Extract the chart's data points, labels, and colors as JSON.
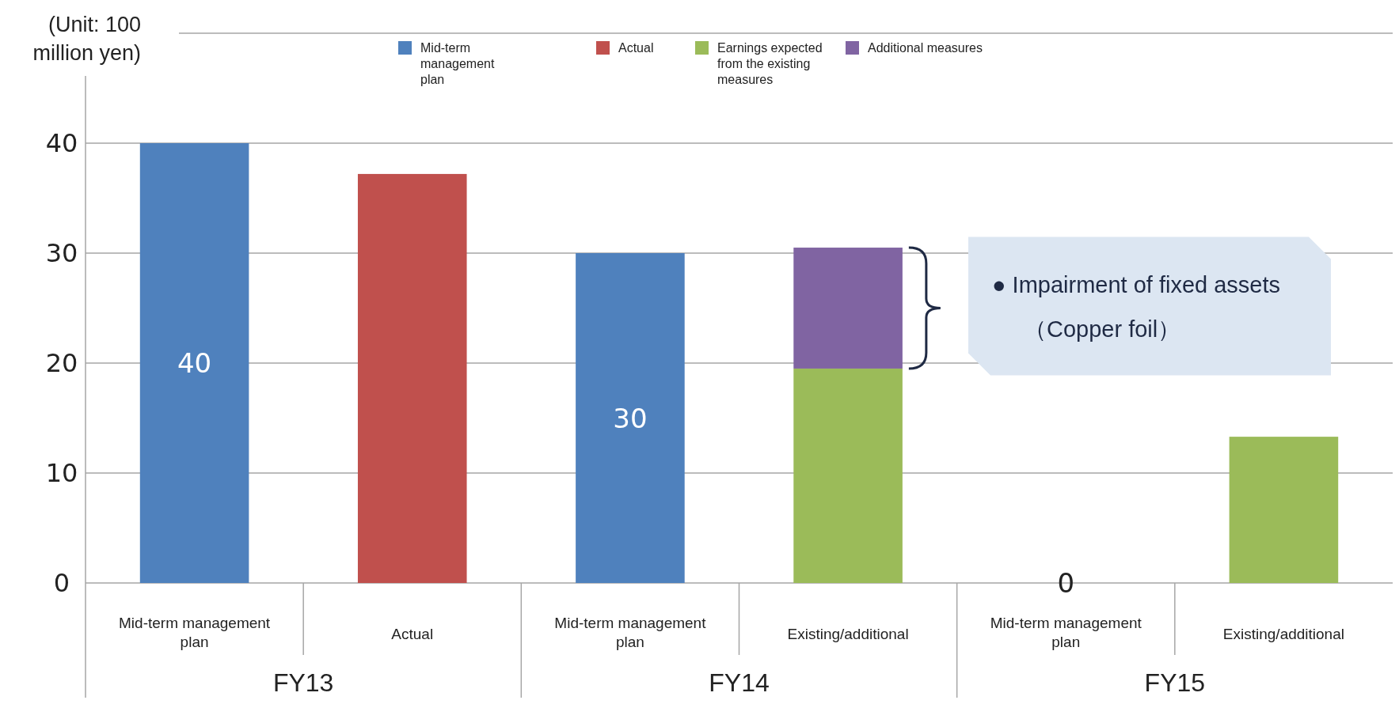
{
  "chart_data": {
    "type": "bar",
    "stacked": true,
    "ylabel": "(Unit: 100 million yen)",
    "categories": [
      "Mid-term management plan",
      "Actual",
      "Mid-term management plan",
      "Existing/additional",
      "Mid-term management plan",
      "Existing/additional"
    ],
    "series": [
      {
        "name": "Mid-term management plan",
        "color": "#4f81bd",
        "values": [
          40,
          null,
          30,
          null,
          0,
          null
        ],
        "value_labels": [
          "40",
          null,
          "30",
          null,
          "0",
          null
        ]
      },
      {
        "name": "Actual",
        "color": "#c0504d",
        "values": [
          null,
          37.2,
          null,
          null,
          null,
          null
        ]
      },
      {
        "name": "Earnings expected from the existing measures",
        "color": "#9bbb59",
        "values": [
          null,
          null,
          null,
          19.5,
          null,
          13.3
        ]
      },
      {
        "name": "Additional measures",
        "color": "#8064a2",
        "values": [
          null,
          null,
          null,
          11,
          null,
          null
        ]
      }
    ],
    "ylim": [
      0,
      50
    ],
    "yticks": [
      0,
      10,
      20,
      30,
      40
    ],
    "grid": "y",
    "legend": "top",
    "annotations": [
      "FY13",
      "FY14",
      "FY15",
      "● Impairment of fixed assets\n（Copper foil）"
    ]
  }
}
